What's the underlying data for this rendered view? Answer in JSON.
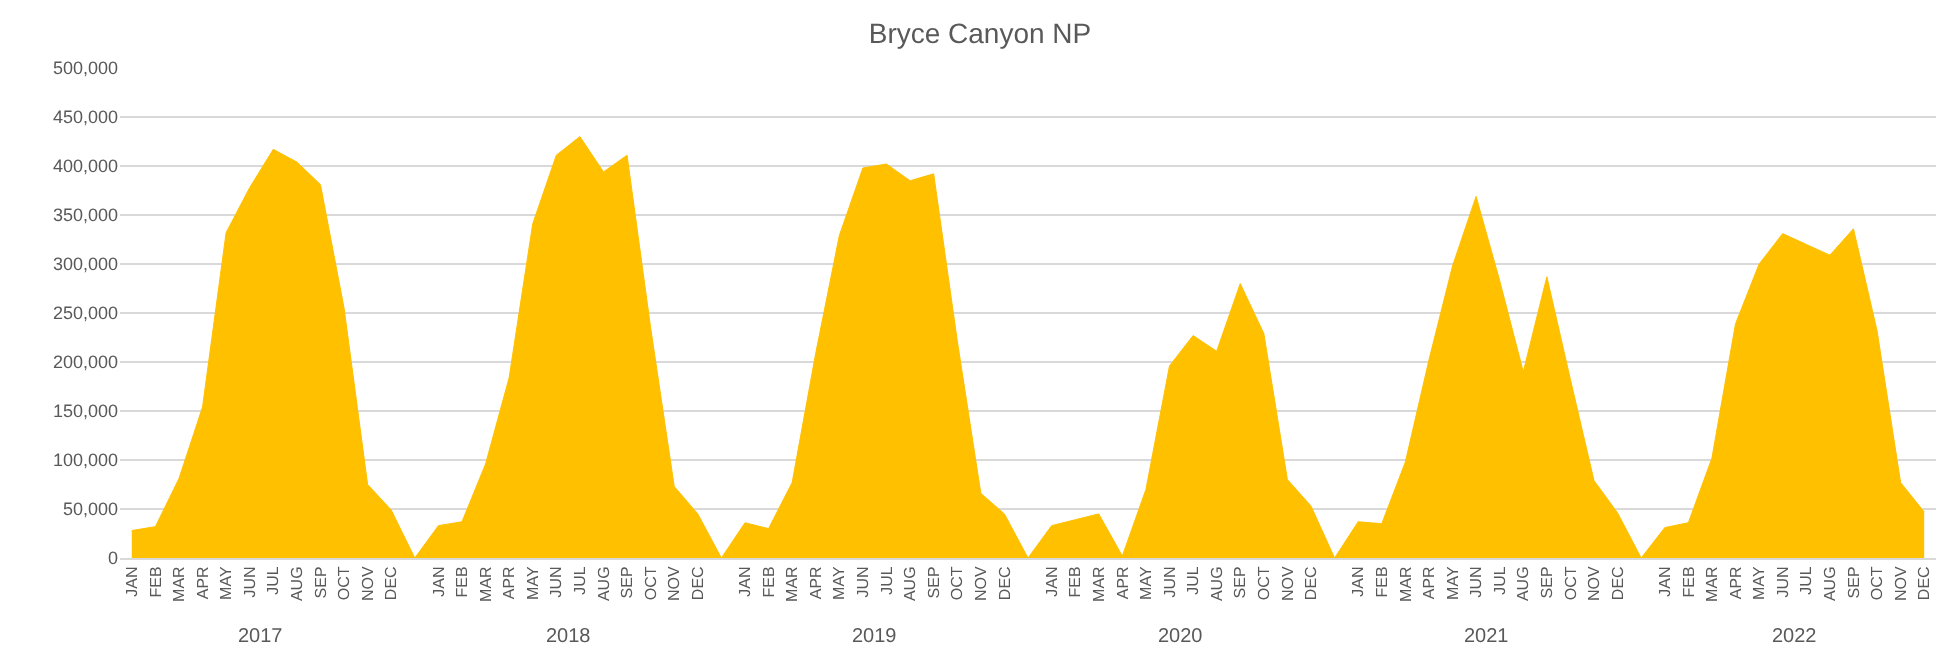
{
  "chart_data": {
    "type": "area",
    "title": "Bryce Canyon NP",
    "categories": [
      "JAN",
      "FEB",
      "MAR",
      "APR",
      "MAY",
      "JUN",
      "JUL",
      "AUG",
      "SEP",
      "OCT",
      "NOV",
      "DEC",
      null,
      "JAN",
      "FEB",
      "MAR",
      "APR",
      "MAY",
      "JUN",
      "JUL",
      "AUG",
      "SEP",
      "OCT",
      "NOV",
      "DEC",
      null,
      "JAN",
      "FEB",
      "MAR",
      "APR",
      "MAY",
      "JUN",
      "JUL",
      "AUG",
      "SEP",
      "OCT",
      "NOV",
      "DEC",
      null,
      "JAN",
      "FEB",
      "MAR",
      "APR",
      "MAY",
      "JUN",
      "JUL",
      "AUG",
      "SEP",
      "OCT",
      "NOV",
      "DEC",
      null,
      "JAN",
      "FEB",
      "MAR",
      "APR",
      "MAY",
      "JUN",
      "JUL",
      "AUG",
      "SEP",
      "OCT",
      "NOV",
      "DEC",
      null,
      "JAN",
      "FEB",
      "MAR",
      "APR",
      "MAY",
      "JUN",
      "JUL",
      "AUG",
      "SEP",
      "OCT",
      "NOV",
      "DEC"
    ],
    "series": [
      {
        "color": "#ffc000",
        "values": [
          28000,
          32000,
          81000,
          154000,
          332000,
          378000,
          417000,
          404000,
          381000,
          255000,
          75000,
          49000,
          0,
          33000,
          37000,
          96000,
          184000,
          341000,
          411000,
          430000,
          394000,
          411000,
          235000,
          73000,
          45000,
          0,
          36000,
          30000,
          77000,
          209000,
          329000,
          398000,
          402000,
          385000,
          392000,
          222000,
          66000,
          45000,
          0,
          33000,
          39000,
          45000,
          2000,
          70000,
          196000,
          227000,
          211000,
          280000,
          229000,
          80000,
          53000,
          0,
          37000,
          35000,
          98000,
          202000,
          298000,
          369000,
          283000,
          190000,
          287000,
          182000,
          79000,
          46000,
          0,
          31000,
          36000,
          102000,
          239000,
          300000,
          331000,
          320000,
          309000,
          336000,
          232000,
          77000,
          47000
        ]
      }
    ],
    "ylim": [
      0,
      500000
    ],
    "yticks": [
      0,
      {
        "value": 50000,
        "label": "50,000"
      },
      {
        "value": 100000,
        "label": "100,000"
      },
      {
        "value": 150000,
        "label": "150,000"
      },
      {
        "value": 200000,
        "label": "200,000"
      },
      {
        "value": 250000,
        "label": "250,000"
      },
      {
        "value": 300000,
        "label": "300,000"
      },
      {
        "value": 350000,
        "label": "350,000"
      },
      {
        "value": 400000,
        "label": "400,000"
      },
      {
        "value": 450000,
        "label": "450,000"
      },
      {
        "value": 500000,
        "label": "500,000"
      }
    ],
    "grid": "y",
    "annotations": [
      "2017",
      "2018",
      "2019",
      "2020",
      "2021",
      "2022"
    ]
  }
}
